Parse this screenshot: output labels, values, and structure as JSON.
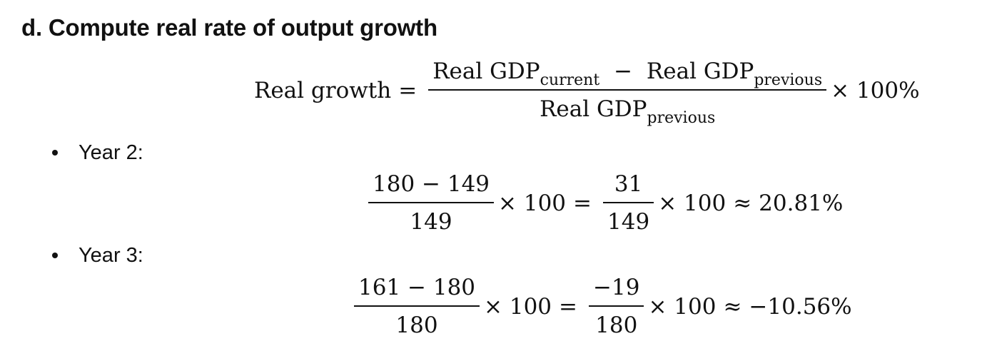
{
  "heading": "d. Compute real rate of output growth",
  "formula": {
    "lhs": "Real growth",
    "eq": "=",
    "numerator_term1": "Real GDP",
    "numerator_sub1": "current",
    "minus": "−",
    "numerator_term2": "Real GDP",
    "numerator_sub2": "previous",
    "denominator_term": "Real GDP",
    "denominator_sub": "previous",
    "times": "× 100%"
  },
  "items": [
    {
      "label": "Year 2:",
      "frac1_num": "180 − 149",
      "frac1_den": "149",
      "mult1": "× 100",
      "eq": "=",
      "frac2_num": "31",
      "frac2_den": "149",
      "mult2": "× 100",
      "approx": "≈",
      "result": "20.81%"
    },
    {
      "label": "Year 3:",
      "frac1_num": "161 − 180",
      "frac1_den": "180",
      "mult1": "× 100",
      "eq": "=",
      "frac2_num": "−19",
      "frac2_den": "180",
      "mult2": "× 100",
      "approx": "≈",
      "result": "−10.56%"
    }
  ]
}
